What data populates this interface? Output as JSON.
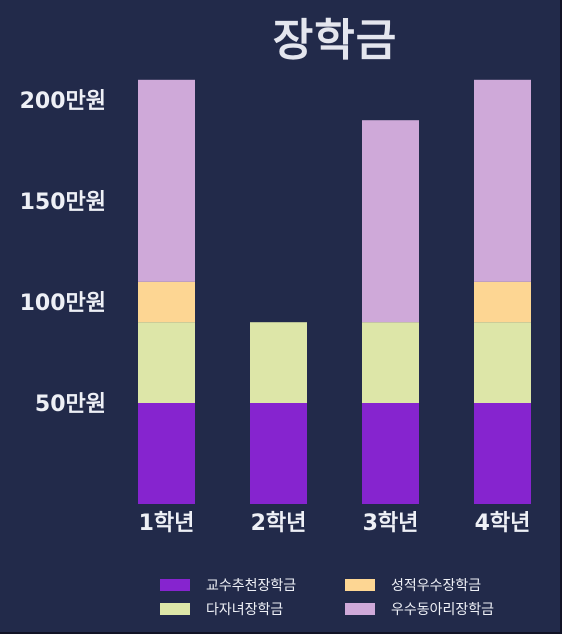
{
  "chart_data": {
    "type": "bar",
    "stacked": true,
    "title": "장학금",
    "categories": [
      "1학년",
      "2학년",
      "3학년",
      "4학년"
    ],
    "series": [
      {
        "name": "교수추천장학금",
        "color": "#8624cf",
        "values": [
          50,
          50,
          50,
          50
        ]
      },
      {
        "name": "다자녀장학금",
        "color": "#dde6a8",
        "values": [
          40,
          40,
          40,
          40
        ]
      },
      {
        "name": "성적우수장학금",
        "color": "#fdd693",
        "values": [
          20,
          0,
          0,
          20
        ]
      },
      {
        "name": "우수동아리장학금",
        "color": "#cfa9d9",
        "values": [
          100,
          0,
          100,
          100
        ]
      }
    ],
    "yticks": [
      {
        "value": 50,
        "label": "50만원"
      },
      {
        "value": 100,
        "label": "100만원"
      },
      {
        "value": 150,
        "label": "150만원"
      },
      {
        "value": 200,
        "label": "200만원"
      }
    ],
    "ylim": [
      0,
      210
    ],
    "xlabel": "",
    "ylabel": "",
    "grid": false,
    "legend_position": "bottom"
  }
}
